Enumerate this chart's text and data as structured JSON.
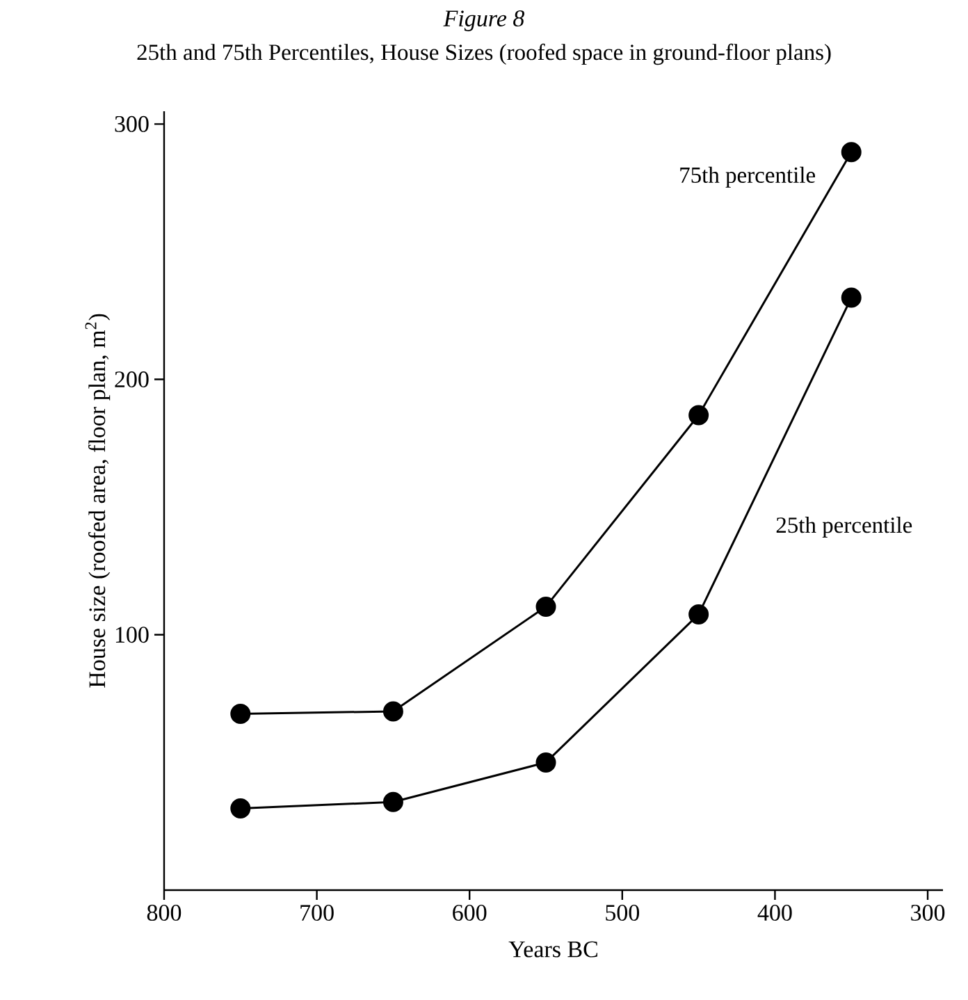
{
  "chart_data": {
    "type": "line",
    "title": "Figure 8",
    "subtitle": "25th and 75th Percentiles, House Sizes (roofed space in ground-floor plans)",
    "xlabel": "Years BC",
    "ylabel": "House size (roofed area, floor plan, m$^{2}$)",
    "x": [
      750,
      650,
      550,
      450,
      350
    ],
    "series": [
      {
        "name": "75th percentile",
        "color": "#000000",
        "values": [
          69,
          70,
          111,
          186,
          289
        ]
      },
      {
        "name": "25th percentile",
        "color": "#000000",
        "values": [
          32,
          34.5,
          50,
          108,
          232
        ]
      }
    ],
    "xlim": [
      800,
      290
    ],
    "xticks": [
      800,
      700,
      600,
      500,
      400,
      300
    ],
    "ylim": [
      0,
      305
    ],
    "yticks": [
      100,
      200,
      300
    ],
    "grid": false,
    "marker": "circle",
    "line_style": "solid"
  }
}
